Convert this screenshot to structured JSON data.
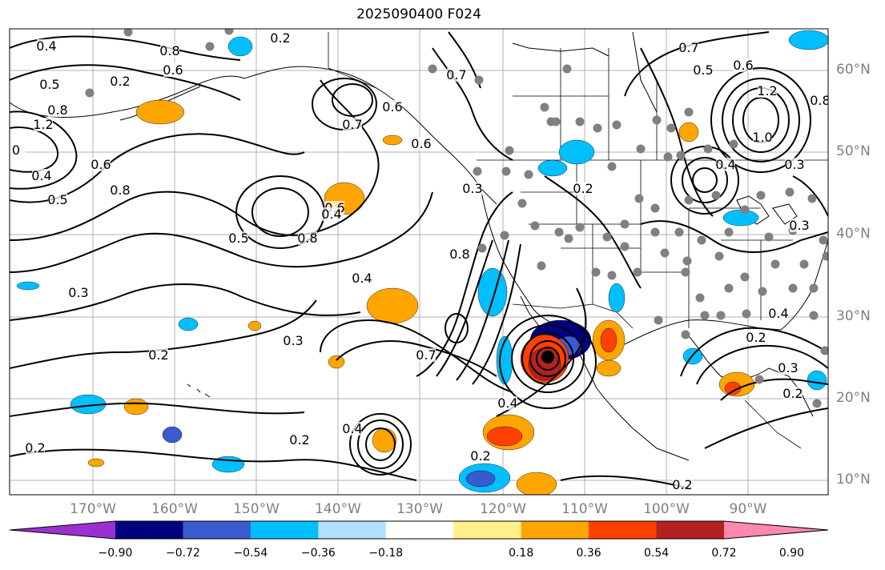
{
  "title": "2025090400 F024",
  "lat_labels": [
    "60°N",
    "50°N",
    "40°N",
    "30°N",
    "20°N",
    "10°N"
  ],
  "lon_labels": [
    "170°W",
    "160°W",
    "150°W",
    "140°W",
    "130°W",
    "120°W",
    "110°W",
    "100°W",
    "90°W"
  ],
  "colorbar": {
    "labels": [
      "−0.90",
      "−0.72",
      "−0.54",
      "−0.36",
      "−0.18",
      "0.18",
      "0.36",
      "0.54",
      "0.72",
      "0.90"
    ],
    "colors": [
      "#9b30d0",
      "#000080",
      "#3a5bd0",
      "#00bfff",
      "#b0e2ff",
      "#ffffff",
      "#fff08a",
      "#ffa500",
      "#ff4000",
      "#b22222",
      "#ff88b0"
    ]
  },
  "contour_labels": [
    "0.4",
    "0.2",
    "0.8",
    "0.6",
    "0.2",
    "0.5",
    "0.8",
    "1.2",
    "0",
    "0.4",
    "0.5",
    "0.6",
    "0.8",
    "0.6",
    "0.7",
    "0.8",
    "0.5",
    "0.7",
    "0.4",
    "0.3",
    "0.3",
    "0.2",
    "0.7",
    "0.4",
    "0.2",
    "0.2",
    "0.4",
    "0.2",
    "0.4",
    "0.3",
    "0.2",
    "0.7",
    "0.5",
    "0.6",
    "1.2",
    "1.0",
    "0.8",
    "0.3",
    "0.4",
    "0.2",
    "0.3",
    "0.4",
    "0.2",
    "0.3",
    "0.2",
    "0.6",
    "0.8",
    "0.6"
  ]
}
